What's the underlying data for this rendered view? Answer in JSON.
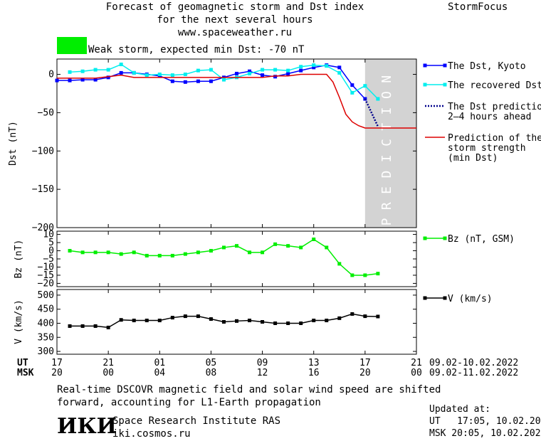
{
  "header": {
    "title_line1": "Forecast of geomagnetic storm and Dst index",
    "title_line2": "for the next several hours",
    "title_line3": "www.spaceweather.ru",
    "brand": "StormFocus",
    "storm_label": "Weak storm, expected min Dst: -70 nT",
    "storm_color": "#00ee00"
  },
  "footer": {
    "note_line1": "Real-time DSCOVR magnetic field and solar wind speed are shifted",
    "note_line2": "forward, accounting for L1-Earth propagation",
    "institute": "Space Research Institute RAS",
    "site": "iki.cosmos.ru",
    "logo_text": "ИКИ",
    "updated_label": "Updated at:",
    "updated_ut": "UT   17:05, 10.02.2022",
    "updated_msk": "MSK 20:05, 10.02.2022"
  },
  "time_axis": {
    "ut_label": "UT",
    "msk_label": "MSK",
    "ut_ticks": [
      "17",
      "21",
      "01",
      "05",
      "09",
      "13",
      "17",
      "21"
    ],
    "msk_ticks": [
      "20",
      "00",
      "04",
      "08",
      "12",
      "16",
      "20",
      "00"
    ],
    "ut_range": "09.02-10.02.2022",
    "msk_range": "09.02-11.02.2022"
  },
  "chart_data": [
    {
      "type": "line",
      "ylabel": "Dst (nT)",
      "ylim": [
        -200,
        20
      ],
      "yticks": [
        0,
        -50,
        -100,
        -150,
        -200
      ],
      "ytick_labels": [
        "0",
        "−50",
        "−100",
        "−150",
        "−200"
      ],
      "x_unit": "hours since 09.02.2022 17:00 UT",
      "xlim": [
        0,
        28
      ],
      "prediction_band": [
        24,
        28
      ],
      "prediction_text": "PREDICTION",
      "series": [
        {
          "name": "The Dst, Kyoto",
          "color": "#0000ff",
          "x": [
            0,
            1,
            2,
            3,
            4,
            5,
            6,
            7,
            8,
            9,
            10,
            11,
            12,
            13,
            14,
            15,
            16,
            17,
            18,
            19,
            20,
            21,
            22,
            23,
            24
          ],
          "y": [
            -8,
            -8,
            -7,
            -7,
            -4,
            2,
            2,
            0,
            -2,
            -9,
            -10,
            -9,
            -9,
            -4,
            1,
            4,
            -1,
            -3,
            1,
            5,
            9,
            12,
            9,
            -14,
            -32
          ]
        },
        {
          "name": "The recovered Dst",
          "color": "#00eeee",
          "x": [
            1,
            2,
            3,
            4,
            5,
            6,
            7,
            8,
            9,
            10,
            11,
            12,
            13,
            14,
            15,
            16,
            17,
            18,
            19,
            20,
            21,
            22,
            23,
            24,
            25
          ],
          "y": [
            3,
            4,
            6,
            6,
            13,
            2,
            -1,
            0,
            -1,
            0,
            5,
            6,
            -7,
            -4,
            1,
            6,
            6,
            5,
            10,
            12,
            11,
            2,
            -24,
            -15,
            -32
          ]
        },
        {
          "name": "The Dst prediction 2–4 hours ahead",
          "color": "#00008b",
          "x": [
            24,
            25
          ],
          "y": [
            -32,
            -68
          ]
        },
        {
          "name": "Prediction of the storm strength (min Dst)",
          "color": "#dd0000",
          "x": [
            0,
            0.5,
            1,
            2,
            3,
            4,
            5,
            6,
            7,
            8,
            9,
            10,
            11,
            12,
            13,
            14,
            15,
            16,
            17,
            18,
            19,
            20,
            21,
            21.5,
            22,
            22.5,
            23,
            23.5,
            24,
            28
          ],
          "y": [
            -5,
            -5,
            -5,
            -5,
            -5,
            -3,
            -1,
            -4,
            -4,
            -4,
            -4,
            -4,
            -4,
            -4,
            -4,
            -4,
            -4,
            -4,
            -2,
            -2,
            0,
            0,
            0,
            -10,
            -30,
            -52,
            -62,
            -67,
            -70,
            -70
          ]
        }
      ],
      "legend_placement": "right"
    },
    {
      "type": "line",
      "ylabel": "Bz (nT)",
      "ylim": [
        -22,
        12
      ],
      "yticks": [
        10,
        5,
        0,
        -5,
        -10,
        -15,
        -20
      ],
      "ytick_labels": [
        "10",
        "5",
        "0",
        "−5",
        "−10",
        "−15",
        "−20"
      ],
      "series": [
        {
          "name": "Bz (nT, GSM)",
          "color": "#00ee00",
          "x": [
            1,
            2,
            3,
            4,
            5,
            6,
            7,
            8,
            9,
            10,
            11,
            12,
            13,
            14,
            15,
            16,
            17,
            18,
            19,
            20,
            21,
            22,
            23,
            24,
            25
          ],
          "y": [
            0,
            -1,
            -1,
            -1,
            -2,
            -1,
            -3,
            -3,
            -3,
            -2,
            -1,
            0,
            2,
            3,
            -1,
            -1,
            4,
            3,
            2,
            7,
            2,
            -8,
            -15,
            -15,
            -14
          ]
        }
      ],
      "legend_placement": "right"
    },
    {
      "type": "line",
      "ylabel": "V (km/s)",
      "ylim": [
        290,
        520
      ],
      "yticks": [
        500,
        450,
        400,
        350,
        300
      ],
      "ytick_labels": [
        "500",
        "450",
        "400",
        "350",
        "300"
      ],
      "series": [
        {
          "name": "V (km/s)",
          "color": "#000000",
          "x": [
            1,
            2,
            3,
            4,
            5,
            6,
            7,
            8,
            9,
            10,
            11,
            12,
            13,
            14,
            15,
            16,
            17,
            18,
            19,
            20,
            21,
            22,
            23,
            24,
            25
          ],
          "y": [
            390,
            390,
            390,
            385,
            412,
            410,
            410,
            410,
            420,
            425,
            425,
            415,
            405,
            408,
            410,
            405,
            400,
            400,
            400,
            410,
            410,
            418,
            433,
            425,
            424
          ]
        }
      ],
      "legend_placement": "right"
    }
  ]
}
